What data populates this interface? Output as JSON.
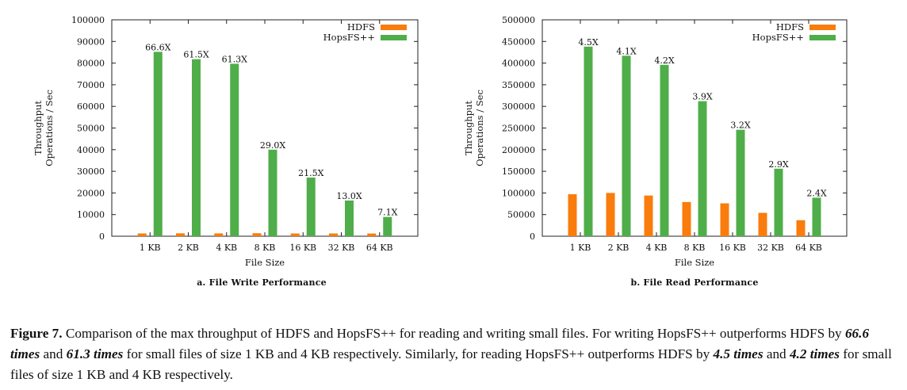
{
  "colors": {
    "hdfs": "#f97c0c",
    "hopsfs": "#4fae4a"
  },
  "chart_data": [
    {
      "type": "bar",
      "subtitle": "a.  File Write Performance",
      "xlabel": "File Size",
      "ylabel_line1": "Throughput",
      "ylabel_line2": "Operations / Sec",
      "categories": [
        "1 KB",
        "2 KB",
        "4 KB",
        "8 KB",
        "16 KB",
        "32 KB",
        "64 KB"
      ],
      "ylim": [
        0,
        100000
      ],
      "yticks": [
        "0",
        "10000",
        "20000",
        "30000",
        "40000",
        "50000",
        "60000",
        "70000",
        "80000",
        "90000",
        "100000"
      ],
      "legend_position": "top-right",
      "series": [
        {
          "name": "HDFS",
          "values": [
            1280,
            1330,
            1300,
            1380,
            1260,
            1270,
            1250
          ]
        },
        {
          "name": "HopsFS++",
          "values": [
            85200,
            81800,
            79700,
            40000,
            27100,
            16500,
            8900
          ]
        }
      ],
      "data_labels": [
        "66.6X",
        "61.5X",
        "61.3X",
        "29.0X",
        "21.5X",
        "13.0X",
        "7.1X"
      ]
    },
    {
      "type": "bar",
      "subtitle": "b.  File Read Performance",
      "xlabel": "File Size",
      "ylabel_line1": "Throughput",
      "ylabel_line2": "Operations / Sec",
      "categories": [
        "1 KB",
        "2 KB",
        "4 KB",
        "8 KB",
        "16 KB",
        "32 KB",
        "64 KB"
      ],
      "ylim": [
        0,
        500000
      ],
      "yticks": [
        "0",
        "50000",
        "100000",
        "150000",
        "200000",
        "250000",
        "300000",
        "350000",
        "400000",
        "450000",
        "500000"
      ],
      "legend_position": "top-right",
      "series": [
        {
          "name": "HDFS",
          "values": [
            97000,
            100000,
            94000,
            79000,
            76000,
            54000,
            37000
          ]
        },
        {
          "name": "HopsFS++",
          "values": [
            438000,
            417000,
            396000,
            312000,
            246000,
            156000,
            89000
          ]
        }
      ],
      "data_labels": [
        "4.5X",
        "4.1X",
        "4.2X",
        "3.9X",
        "3.2X",
        "2.9X",
        "2.4X"
      ]
    }
  ],
  "caption": {
    "figure": "Figure 7.",
    "t1": " Comparison of the max throughput of HDFS and HopsFS++ for reading and writing small files. For writing HopsFS++ outperforms HDFS by ",
    "e1": "66.6 times",
    "t2": " and ",
    "e2": "61.3 times",
    "t3": " for small files of size 1 KB and 4 KB respectively. Similarly, for reading HopsFS++ outperforms HDFS by ",
    "e3": "4.5 times",
    "t4": " and ",
    "e4": "4.2 times",
    "t5": " for small files of size 1 KB and 4 KB respectively."
  }
}
